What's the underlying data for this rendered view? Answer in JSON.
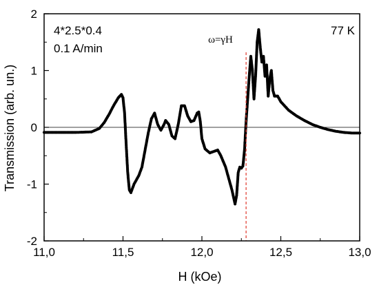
{
  "chart_data": {
    "type": "scatter",
    "xlabel": "H (kOe)",
    "ylabel": "Transmission (arb. un.)",
    "xlim": [
      11.0,
      13.0
    ],
    "ylim": [
      -2,
      2
    ],
    "x_ticks": [
      "11,0",
      "11,5",
      "12,0",
      "12,5",
      "13,0"
    ],
    "y_ticks": [
      "-2",
      "-1",
      "0",
      "1",
      "2"
    ],
    "annotations": {
      "sample": "4*2.5*0.4",
      "rate": "0.1 A/min",
      "temperature": "77 K",
      "resonance": "ω=γH"
    },
    "resonance_line_x": 12.28,
    "zero_line": true,
    "grid": false,
    "series": [
      {
        "color": "#000000",
        "points": [
          [
            11.0,
            -0.09
          ],
          [
            11.1,
            -0.09
          ],
          [
            11.2,
            -0.09
          ],
          [
            11.3,
            -0.08
          ],
          [
            11.35,
            -0.02
          ],
          [
            11.38,
            0.08
          ],
          [
            11.41,
            0.22
          ],
          [
            11.44,
            0.38
          ],
          [
            11.47,
            0.52
          ],
          [
            11.49,
            0.58
          ],
          [
            11.5,
            0.52
          ],
          [
            11.51,
            0.25
          ],
          [
            11.52,
            -0.3
          ],
          [
            11.53,
            -0.8
          ],
          [
            11.54,
            -1.1
          ],
          [
            11.55,
            -1.15
          ],
          [
            11.57,
            -1.0
          ],
          [
            11.6,
            -0.85
          ],
          [
            11.62,
            -0.7
          ],
          [
            11.64,
            -0.4
          ],
          [
            11.66,
            -0.1
          ],
          [
            11.68,
            0.15
          ],
          [
            11.7,
            0.25
          ],
          [
            11.72,
            0.05
          ],
          [
            11.74,
            -0.05
          ],
          [
            11.76,
            0.05
          ],
          [
            11.77,
            0.12
          ],
          [
            11.79,
            0.05
          ],
          [
            11.81,
            -0.15
          ],
          [
            11.83,
            -0.2
          ],
          [
            11.85,
            0.05
          ],
          [
            11.87,
            0.38
          ],
          [
            11.89,
            0.38
          ],
          [
            11.91,
            0.2
          ],
          [
            11.93,
            0.1
          ],
          [
            11.95,
            0.12
          ],
          [
            11.97,
            0.25
          ],
          [
            11.98,
            0.27
          ],
          [
            11.99,
            0.1
          ],
          [
            12.0,
            -0.2
          ],
          [
            12.02,
            -0.38
          ],
          [
            12.05,
            -0.45
          ],
          [
            12.08,
            -0.42
          ],
          [
            12.1,
            -0.4
          ],
          [
            12.12,
            -0.5
          ],
          [
            12.15,
            -0.7
          ],
          [
            12.17,
            -0.9
          ],
          [
            12.19,
            -1.1
          ],
          [
            12.21,
            -1.35
          ],
          [
            12.22,
            -1.2
          ],
          [
            12.23,
            -0.8
          ],
          [
            12.24,
            -0.7
          ],
          [
            12.25,
            -0.72
          ],
          [
            12.26,
            -0.68
          ],
          [
            12.27,
            -0.4
          ],
          [
            12.28,
            0.1
          ],
          [
            12.29,
            0.5
          ],
          [
            12.3,
            0.9
          ],
          [
            12.31,
            1.25
          ],
          [
            12.32,
            1.0
          ],
          [
            12.33,
            0.5
          ],
          [
            12.34,
            0.9
          ],
          [
            12.35,
            1.5
          ],
          [
            12.36,
            1.72
          ],
          [
            12.37,
            1.4
          ],
          [
            12.38,
            1.15
          ],
          [
            12.39,
            1.25
          ],
          [
            12.4,
            0.9
          ],
          [
            12.41,
            1.1
          ],
          [
            12.42,
            0.55
          ],
          [
            12.43,
            0.85
          ],
          [
            12.44,
            1.0
          ],
          [
            12.45,
            0.65
          ],
          [
            12.46,
            0.55
          ],
          [
            12.48,
            0.55
          ],
          [
            12.5,
            0.45
          ],
          [
            12.55,
            0.3
          ],
          [
            12.6,
            0.2
          ],
          [
            12.65,
            0.12
          ],
          [
            12.7,
            0.05
          ],
          [
            12.75,
            0.0
          ],
          [
            12.8,
            -0.04
          ],
          [
            12.85,
            -0.07
          ],
          [
            12.9,
            -0.09
          ],
          [
            12.95,
            -0.1
          ],
          [
            13.0,
            -0.1
          ]
        ]
      }
    ]
  }
}
